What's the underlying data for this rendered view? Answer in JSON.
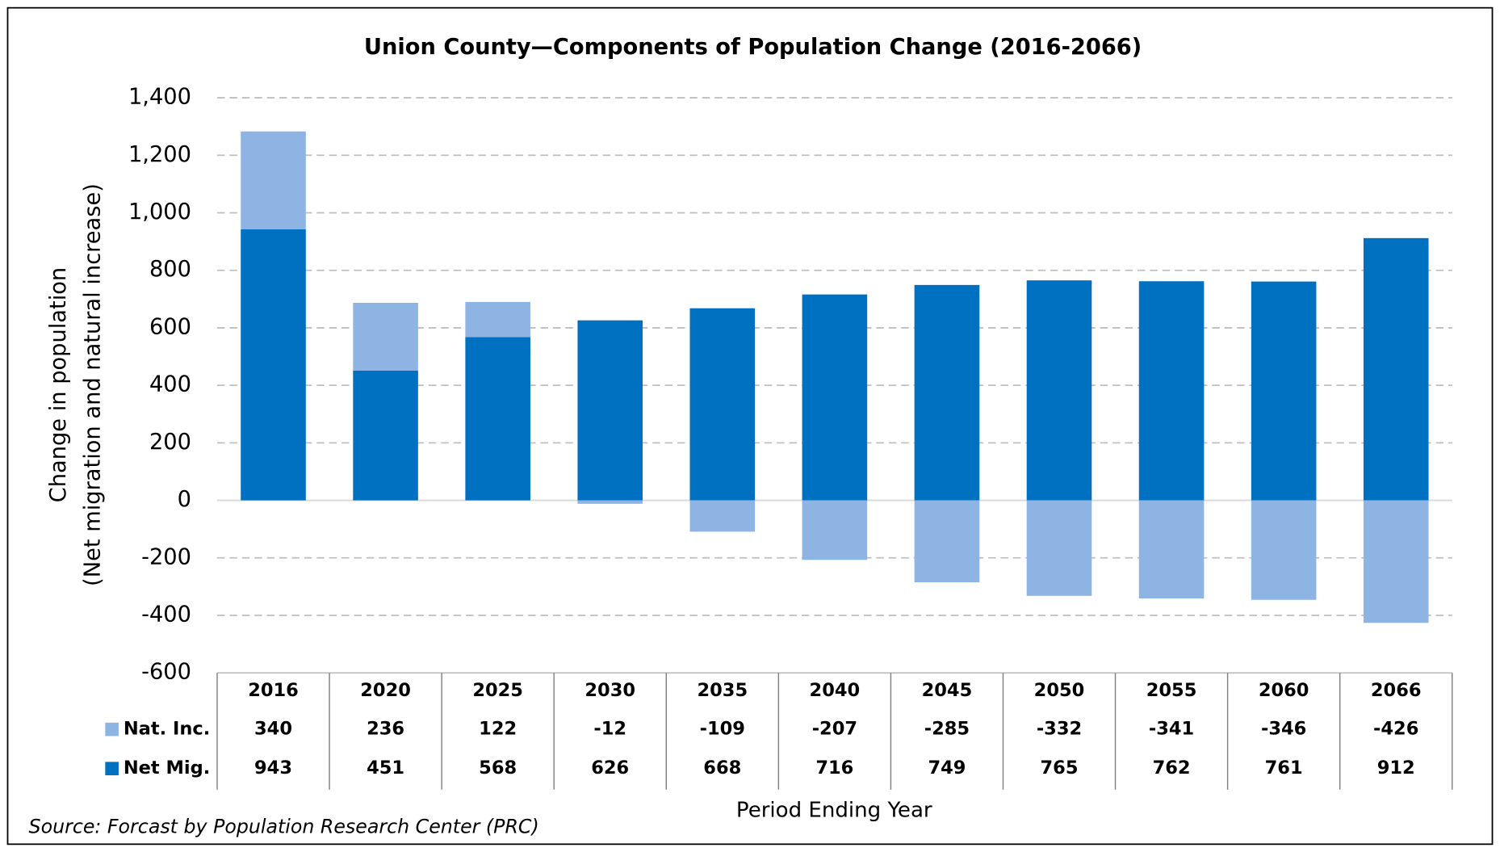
{
  "chart_data": {
    "type": "bar",
    "stacked": true,
    "title": "Union County—Components of Population Change (2016-2066)",
    "ylabel": [
      "Change in population",
      "(Net migration and natural increase)"
    ],
    "xlabel": "Period Ending Year",
    "source": "Source: Forcast by Population Research Center (PRC)",
    "categories": [
      "2016",
      "2020",
      "2025",
      "2030",
      "2035",
      "2040",
      "2045",
      "2050",
      "2055",
      "2060",
      "2066"
    ],
    "series": [
      {
        "name": "Nat. Inc.",
        "color": "#8eb4e3",
        "values": [
          340,
          236,
          122,
          -12,
          -109,
          -207,
          -285,
          -332,
          -341,
          -346,
          -426
        ]
      },
      {
        "name": "Net Mig.",
        "color": "#0070c0",
        "values": [
          943,
          451,
          568,
          626,
          668,
          716,
          749,
          765,
          762,
          761,
          912
        ]
      }
    ],
    "ylim": [
      -600,
      1400
    ],
    "yticks": [
      -600,
      -400,
      -200,
      0,
      200,
      400,
      600,
      800,
      {
        "value": 1000,
        "label": "1,000"
      },
      {
        "value": 1200,
        "label": "1,200"
      },
      {
        "value": 1400,
        "label": "1,400"
      }
    ],
    "grid": true
  }
}
